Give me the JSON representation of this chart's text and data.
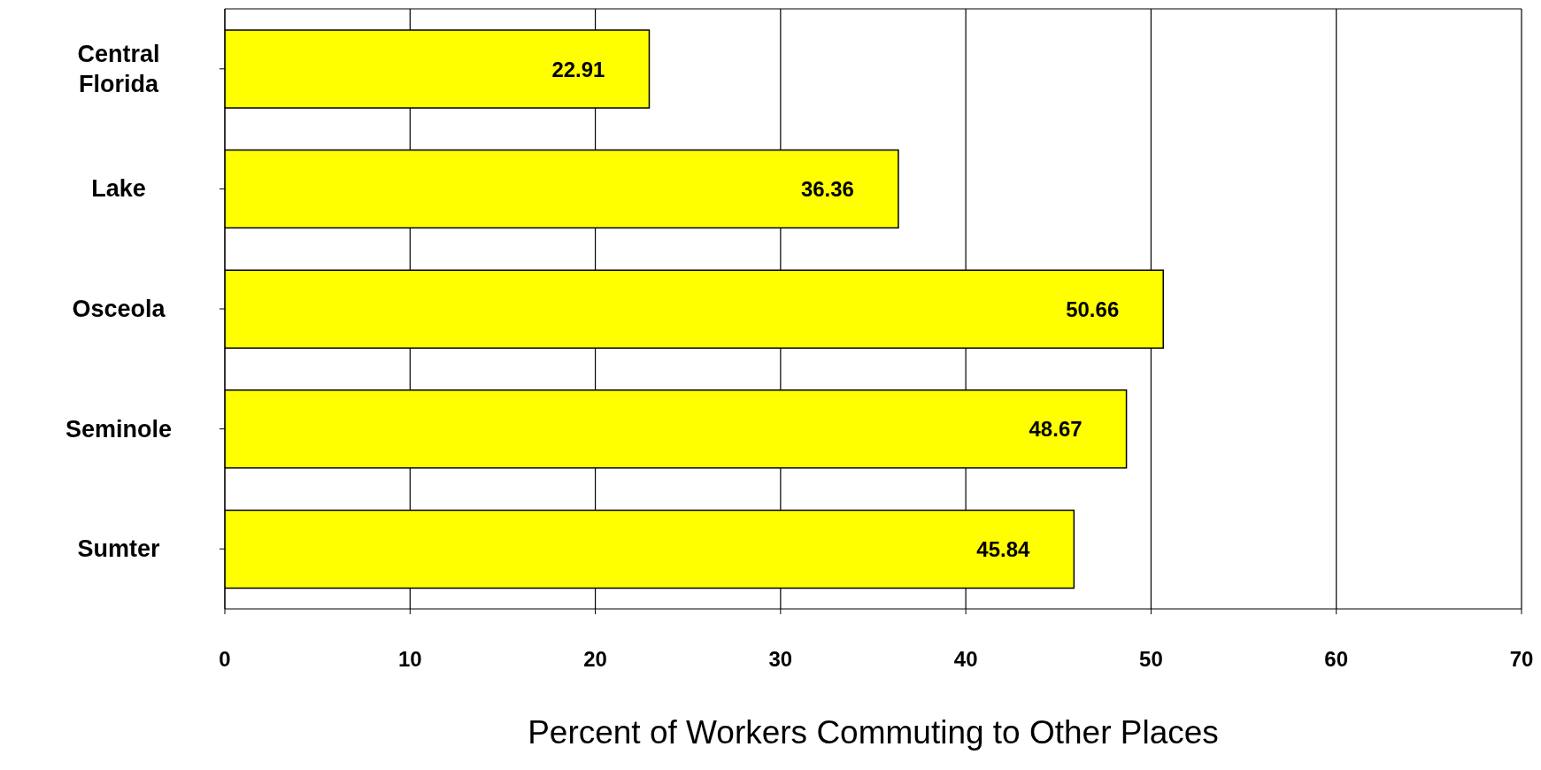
{
  "chart_data": {
    "type": "bar",
    "orientation": "horizontal",
    "xlabel": "Percent of Workers Commuting to Other Places",
    "categories": [
      "Central Florida",
      "Lake",
      "Osceola",
      "Seminole",
      "Sumter"
    ],
    "values": [
      22.91,
      36.36,
      50.66,
      48.67,
      45.84
    ],
    "color": "#ffff00",
    "xlim": [
      0,
      70
    ],
    "xticks": [
      0,
      10,
      20,
      30,
      40,
      50,
      60,
      70
    ],
    "grid": "x",
    "data_labels": true,
    "legend": false
  }
}
